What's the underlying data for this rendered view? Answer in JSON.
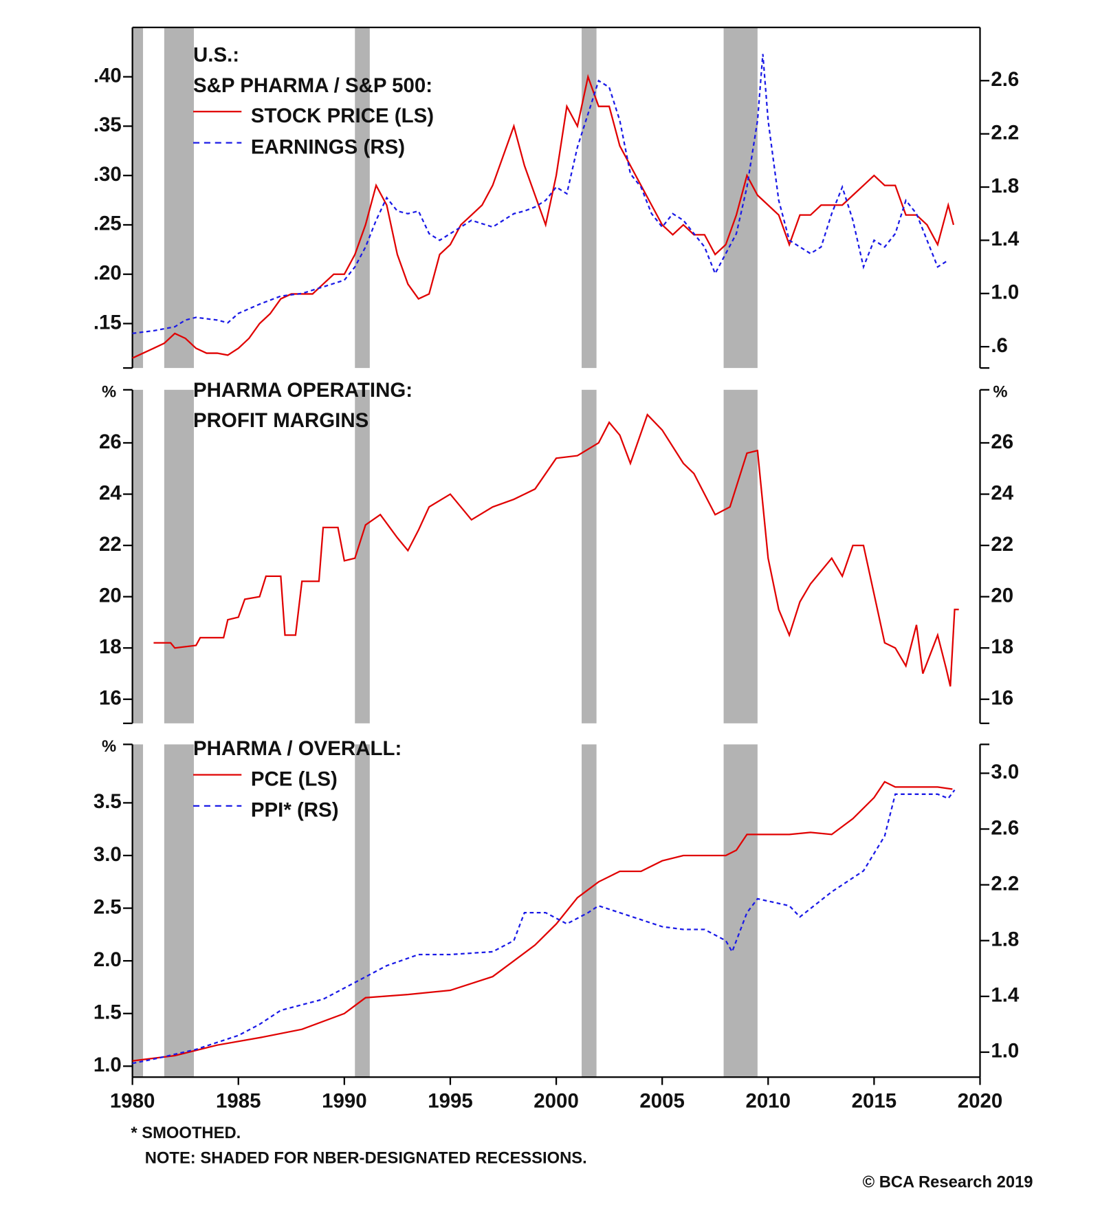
{
  "chart_data": [
    {
      "type": "line",
      "title": [
        "U.S.:",
        "S&P PHARMA / S&P 500:"
      ],
      "xlim": [
        1980,
        2020
      ],
      "ylim": [
        0.105,
        0.45
      ],
      "yticks": [
        {
          "value": 0.15,
          "label": ".15"
        },
        {
          "value": 0.2,
          "label": ".20"
        },
        {
          "value": 0.25,
          "label": ".25"
        },
        {
          "value": 0.3,
          "label": ".30"
        },
        {
          "value": 0.35,
          "label": ".35"
        },
        {
          "value": 0.4,
          "label": ".40"
        }
      ],
      "y2lim": [
        0.44,
        3.0
      ],
      "y2ticks": [
        {
          "value": 0.6,
          "label": ".6"
        },
        {
          "value": 1,
          "label": "1.0"
        },
        1.4,
        1.8,
        2.2,
        2.6
      ],
      "recessions": [
        [
          1980,
          1980.5
        ],
        [
          1981.5,
          1982.9
        ],
        [
          1990.5,
          1991.2
        ],
        [
          2001.2,
          2001.9
        ],
        [
          2007.9,
          2009.5
        ]
      ],
      "recession_color": "#b3b3b3",
      "series": [
        {
          "name": "STOCK PRICE (LS)",
          "color": "#e00000",
          "dash": false,
          "axis": "y",
          "x": [
            1980,
            1980.5,
            1981,
            1981.5,
            1982,
            1982.5,
            1983,
            1983.5,
            1984,
            1984.5,
            1985,
            1985.5,
            1986,
            1986.5,
            1987,
            1987.5,
            1988,
            1988.5,
            1989,
            1989.5,
            1990,
            1990.5,
            1991,
            1991.5,
            1992,
            1992.5,
            1993,
            1993.5,
            1994,
            1994.5,
            1995,
            1995.5,
            1996,
            1996.5,
            1997,
            1997.5,
            1998,
            1998.5,
            1999,
            1999.5,
            2000,
            2000.5,
            2001,
            2001.5,
            2002,
            2002.5,
            2003,
            2003.5,
            2004,
            2004.5,
            2005,
            2005.5,
            2006,
            2006.5,
            2007,
            2007.5,
            2008,
            2008.5,
            2009,
            2009.5,
            2010,
            2010.5,
            2011,
            2011.5,
            2012,
            2012.5,
            2013,
            2013.5,
            2014,
            2014.5,
            2015,
            2015.5,
            2016,
            2016.5,
            2017,
            2017.5,
            2018,
            2018.5,
            2018.75
          ],
          "values": [
            0.115,
            0.12,
            0.125,
            0.13,
            0.14,
            0.135,
            0.125,
            0.12,
            0.12,
            0.118,
            0.125,
            0.135,
            0.15,
            0.16,
            0.175,
            0.18,
            0.18,
            0.18,
            0.19,
            0.2,
            0.2,
            0.22,
            0.25,
            0.29,
            0.27,
            0.22,
            0.19,
            0.175,
            0.18,
            0.22,
            0.23,
            0.25,
            0.26,
            0.27,
            0.29,
            0.32,
            0.35,
            0.31,
            0.28,
            0.25,
            0.3,
            0.37,
            0.35,
            0.4,
            0.37,
            0.37,
            0.33,
            0.31,
            0.29,
            0.27,
            0.25,
            0.24,
            0.25,
            0.24,
            0.24,
            0.22,
            0.23,
            0.26,
            0.3,
            0.28,
            0.27,
            0.26,
            0.23,
            0.26,
            0.26,
            0.27,
            0.27,
            0.27,
            0.28,
            0.29,
            0.3,
            0.29,
            0.29,
            0.26,
            0.26,
            0.25,
            0.23,
            0.27,
            0.25
          ]
        },
        {
          "name": "EARNINGS (RS)",
          "color": "#1a1ae6",
          "dash": true,
          "axis": "y2",
          "x": [
            1980,
            1981,
            1982,
            1982.5,
            1983,
            1984,
            1984.5,
            1985,
            1986,
            1987,
            1988,
            1989,
            1990,
            1990.5,
            1991,
            1991.5,
            1992,
            1992.5,
            1993,
            1993.5,
            1994,
            1994.5,
            1995,
            1996,
            1997,
            1997.5,
            1998,
            1998.5,
            1999,
            1999.5,
            2000,
            2000.5,
            2001,
            2001.5,
            2002,
            2002.5,
            2003,
            2003.5,
            2004,
            2004.5,
            2005,
            2005.5,
            2006,
            2006.5,
            2007,
            2007.5,
            2008,
            2008.5,
            2009,
            2009.5,
            2009.75,
            2010,
            2010.5,
            2011,
            2011.5,
            2012,
            2012.5,
            2013,
            2013.5,
            2014,
            2014.5,
            2015,
            2015.5,
            2016,
            2016.5,
            2017,
            2017.5,
            2018,
            2018.5
          ],
          "values": [
            0.7,
            0.72,
            0.75,
            0.8,
            0.82,
            0.8,
            0.78,
            0.85,
            0.92,
            0.98,
            1.0,
            1.05,
            1.1,
            1.2,
            1.35,
            1.55,
            1.72,
            1.62,
            1.6,
            1.62,
            1.45,
            1.4,
            1.45,
            1.55,
            1.5,
            1.55,
            1.6,
            1.62,
            1.65,
            1.7,
            1.8,
            1.75,
            2.1,
            2.35,
            2.6,
            2.55,
            2.3,
            1.9,
            1.8,
            1.6,
            1.5,
            1.6,
            1.55,
            1.45,
            1.35,
            1.15,
            1.3,
            1.45,
            1.8,
            2.3,
            2.8,
            2.3,
            1.7,
            1.4,
            1.35,
            1.3,
            1.35,
            1.6,
            1.8,
            1.55,
            1.2,
            1.4,
            1.35,
            1.45,
            1.7,
            1.6,
            1.4,
            1.2,
            1.25
          ]
        }
      ]
    },
    {
      "type": "line",
      "title": [
        "PHARMA OPERATING:",
        "PROFIT MARGINS"
      ],
      "ylabel": "%",
      "mirror_y": true,
      "xlim": [
        1980,
        2020
      ],
      "ylim": [
        15.06,
        28.07
      ],
      "yticks": [
        16,
        18,
        20,
        22,
        24,
        26
      ],
      "recessions": [
        [
          1980,
          1980.5
        ],
        [
          1981.5,
          1982.9
        ],
        [
          1990.5,
          1991.2
        ],
        [
          2001.2,
          2001.9
        ],
        [
          2007.9,
          2009.5
        ]
      ],
      "recession_color": "#b3b3b3",
      "series": [
        {
          "color": "#e00000",
          "dash": false,
          "axis": "y",
          "x": [
            1981,
            1981.8,
            1982,
            1983,
            1983.2,
            1984.3,
            1984.5,
            1985,
            1985.3,
            1986,
            1986.3,
            1987,
            1987.2,
            1987.7,
            1988,
            1988.8,
            1989,
            1989.7,
            1990,
            1990.5,
            1991,
            1991.7,
            1992.5,
            1993,
            1993.5,
            1994,
            1995,
            1996,
            1997,
            1998,
            1999,
            2000,
            2001,
            2002,
            2002.5,
            2003,
            2003.5,
            2004.3,
            2005,
            2006,
            2006.5,
            2007.5,
            2008.2,
            2009,
            2009.5,
            2010,
            2010.5,
            2011,
            2011.5,
            2012,
            2013,
            2013.5,
            2014,
            2014.5,
            2015.5,
            2016,
            2016.5,
            2017,
            2017.3,
            2018,
            2018.4,
            2018.6,
            2018.8,
            2019
          ],
          "values": [
            18.2,
            18.2,
            18,
            18.1,
            18.4,
            18.4,
            19.1,
            19.2,
            19.9,
            20,
            20.8,
            20.8,
            18.5,
            18.5,
            20.6,
            20.6,
            22.7,
            22.7,
            21.4,
            21.5,
            22.8,
            23.2,
            22.3,
            21.8,
            22.6,
            23.5,
            24,
            23,
            23.5,
            23.8,
            24.2,
            25.4,
            25.5,
            26,
            26.8,
            26.3,
            25.2,
            27.1,
            26.5,
            25.2,
            24.8,
            23.2,
            23.5,
            25.6,
            25.7,
            21.5,
            19.5,
            18.5,
            19.8,
            20.5,
            21.5,
            20.8,
            22,
            22,
            18.2,
            18,
            17.3,
            18.9,
            17,
            18.5,
            17.2,
            16.5,
            19.5,
            19.5
          ]
        }
      ]
    },
    {
      "type": "line",
      "title": [
        "PHARMA / OVERALL:"
      ],
      "ylabel": "%",
      "xlim": [
        1980,
        2020
      ],
      "xticks": [
        1980,
        1985,
        1990,
        1995,
        2000,
        2005,
        2010,
        2015,
        2020
      ],
      "ylim": [
        0.896,
        4.055
      ],
      "yticks": [
        {
          "value": 1,
          "label": "1.0"
        },
        1.5,
        {
          "value": 2,
          "label": "2.0"
        },
        2.5,
        {
          "value": 3,
          "label": "3.0"
        },
        3.5
      ],
      "y2lim": [
        0.821,
        3.207
      ],
      "y2ticks": [
        {
          "value": 1,
          "label": "1.0"
        },
        1.4,
        1.8,
        2.2,
        2.6,
        {
          "value": 3,
          "label": "3.0"
        }
      ],
      "recessions": [
        [
          1980,
          1980.5
        ],
        [
          1981.5,
          1982.9
        ],
        [
          1990.5,
          1991.2
        ],
        [
          2001.2,
          2001.9
        ],
        [
          2007.9,
          2009.5
        ]
      ],
      "recession_color": "#b3b3b3",
      "series": [
        {
          "name": "PCE (LS)",
          "color": "#e00000",
          "dash": false,
          "axis": "y",
          "x": [
            1980,
            1982,
            1984,
            1986,
            1988,
            1990,
            1991,
            1993,
            1995,
            1997,
            1998,
            1999,
            2000,
            2001,
            2002,
            2003,
            2004,
            2005,
            2006,
            2007,
            2008,
            2008.5,
            2009,
            2010,
            2011,
            2012,
            2013,
            2014,
            2015,
            2015.5,
            2016,
            2017,
            2018,
            2018.7
          ],
          "values": [
            1.05,
            1.1,
            1.2,
            1.27,
            1.35,
            1.5,
            1.65,
            1.68,
            1.72,
            1.85,
            2,
            2.15,
            2.35,
            2.6,
            2.75,
            2.85,
            2.85,
            2.95,
            3,
            3,
            3,
            3.05,
            3.2,
            3.2,
            3.2,
            3.22,
            3.2,
            3.35,
            3.55,
            3.7,
            3.65,
            3.65,
            3.65,
            3.63
          ]
        },
        {
          "name": "PPI* (RS)",
          "color": "#1a1ae6",
          "dash": true,
          "axis": "y2",
          "x": [
            1980,
            1981,
            1983,
            1985,
            1986,
            1987,
            1989,
            1990.5,
            1992,
            1993.5,
            1995,
            1997,
            1998,
            1998.5,
            1999.5,
            2000.5,
            2001.5,
            2002,
            2003,
            2005,
            2006,
            2007,
            2008,
            2008.3,
            2009,
            2009.5,
            2011,
            2011.5,
            2013,
            2014.5,
            2015.5,
            2016,
            2017,
            2018,
            2018.5,
            2018.8
          ],
          "values": [
            0.92,
            0.95,
            1.02,
            1.12,
            1.2,
            1.3,
            1.38,
            1.5,
            1.62,
            1.7,
            1.7,
            1.72,
            1.8,
            2,
            2,
            1.92,
            2,
            2.05,
            2,
            1.9,
            1.88,
            1.88,
            1.8,
            1.72,
            2,
            2.1,
            2.05,
            1.97,
            2.15,
            2.3,
            2.55,
            2.85,
            2.85,
            2.85,
            2.82,
            2.88
          ]
        }
      ],
      "notes": [
        "* SMOOTHED.",
        "NOTE: SHADED FOR NBER-DESIGNATED RECESSIONS."
      ],
      "source": "© BCA Research 2019"
    }
  ]
}
